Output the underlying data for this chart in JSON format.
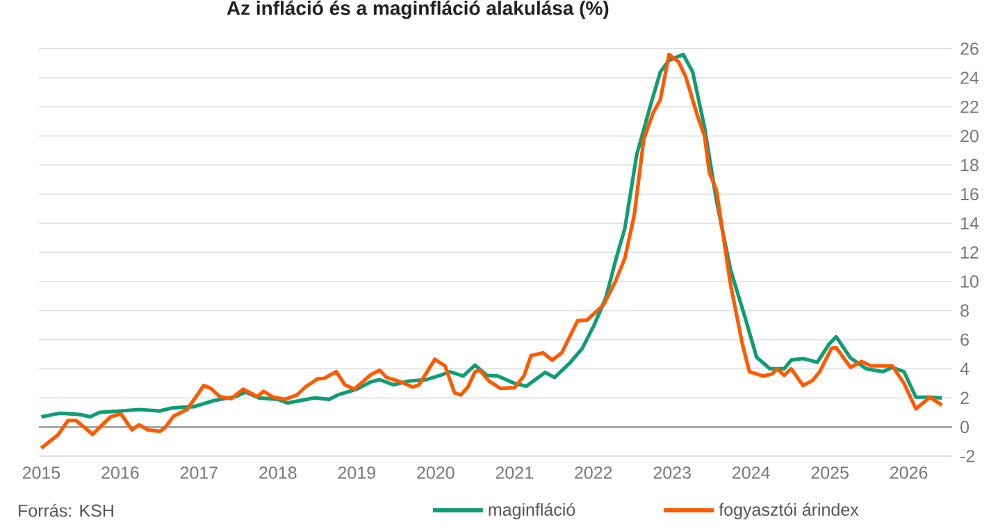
{
  "chart_data": {
    "type": "line",
    "title": "Az infláció és a maginfláció alakulása (%)",
    "annotations": [
      "Forrás: KSH"
    ],
    "xlim": [
      2014.97,
      2026.55
    ],
    "xticks": [
      2015,
      2016,
      2017,
      2018,
      2019,
      2020,
      2021,
      2022,
      2023,
      2024,
      2025,
      2026
    ],
    "ylim": [
      -2,
      26
    ],
    "yticks": [
      -2,
      0,
      2,
      4,
      6,
      8,
      10,
      12,
      14,
      16,
      18,
      20,
      22,
      24,
      26
    ],
    "grid": "y",
    "legend": "bottom",
    "marker": "none",
    "line_style": "solid",
    "ref_lines": [
      {
        "axis": "y",
        "value": 0,
        "color": "#888888"
      }
    ],
    "series": [
      {
        "name": "maginfláció",
        "color": "#0f9d74",
        "x": [
          2015.0,
          2015.24,
          2015.5,
          2015.62,
          2015.74,
          2016.01,
          2016.24,
          2016.5,
          2016.65,
          2016.94,
          2017.18,
          2017.47,
          2017.59,
          2017.76,
          2018.0,
          2018.12,
          2018.47,
          2018.65,
          2018.76,
          2019.0,
          2019.18,
          2019.29,
          2019.47,
          2019.65,
          2019.88,
          2020.06,
          2020.18,
          2020.35,
          2020.5,
          2020.65,
          2020.79,
          2021.0,
          2021.15,
          2021.39,
          2021.51,
          2021.71,
          2021.86,
          2022.01,
          2022.16,
          2022.28,
          2022.4,
          2022.55,
          2022.73,
          2022.85,
          2022.96,
          2023.14,
          2023.26,
          2023.41,
          2023.56,
          2023.74,
          2023.92,
          2024.07,
          2024.24,
          2024.42,
          2024.51,
          2024.66,
          2024.84,
          2024.99,
          2025.08,
          2025.26,
          2025.46,
          2025.67,
          2025.79,
          2025.94,
          2026.09,
          2026.27,
          2026.42
        ],
        "values": [
          0.7,
          0.95,
          0.85,
          0.7,
          1.0,
          1.1,
          1.2,
          1.1,
          1.3,
          1.4,
          1.8,
          2.1,
          2.4,
          2.0,
          1.9,
          1.65,
          2.0,
          1.9,
          2.2,
          2.6,
          3.1,
          3.25,
          2.9,
          3.15,
          3.25,
          3.55,
          3.8,
          3.5,
          4.25,
          3.55,
          3.5,
          3.0,
          2.8,
          3.75,
          3.4,
          4.45,
          5.4,
          7.0,
          8.9,
          11.4,
          13.65,
          18.7,
          22.2,
          24.4,
          25.2,
          25.6,
          24.4,
          20.6,
          15.6,
          10.8,
          7.6,
          4.8,
          4.0,
          4.0,
          4.6,
          4.7,
          4.45,
          5.7,
          6.2,
          4.75,
          4.0,
          3.8,
          4.1,
          3.8,
          2.05,
          2.05,
          2.0
        ]
      },
      {
        "name": "fogyasztói árindex",
        "color": "#ff5a00",
        "x": [
          2015.0,
          2015.21,
          2015.34,
          2015.44,
          2015.65,
          2015.88,
          2016.01,
          2016.15,
          2016.24,
          2016.35,
          2016.5,
          2016.56,
          2016.68,
          2016.85,
          2017.06,
          2017.15,
          2017.26,
          2017.41,
          2017.56,
          2017.74,
          2017.82,
          2017.94,
          2018.09,
          2018.24,
          2018.35,
          2018.5,
          2018.59,
          2018.74,
          2018.85,
          2018.97,
          2019.18,
          2019.29,
          2019.38,
          2019.53,
          2019.71,
          2019.79,
          2019.99,
          2020.12,
          2020.24,
          2020.32,
          2020.41,
          2020.5,
          2020.56,
          2020.68,
          2020.82,
          2021.0,
          2021.12,
          2021.21,
          2021.36,
          2021.48,
          2021.6,
          2021.8,
          2021.92,
          2022.13,
          2022.28,
          2022.4,
          2022.52,
          2022.64,
          2022.76,
          2022.85,
          2022.96,
          2023.08,
          2023.17,
          2023.32,
          2023.41,
          2023.47,
          2023.56,
          2023.74,
          2023.89,
          2023.98,
          2024.16,
          2024.27,
          2024.33,
          2024.42,
          2024.51,
          2024.66,
          2024.78,
          2024.87,
          2025.02,
          2025.08,
          2025.26,
          2025.4,
          2025.52,
          2025.79,
          2025.94,
          2026.09,
          2026.27,
          2026.42
        ],
        "values": [
          -1.45,
          -0.55,
          0.45,
          0.45,
          -0.5,
          0.7,
          0.9,
          -0.2,
          0.15,
          -0.2,
          -0.3,
          -0.1,
          0.75,
          1.2,
          2.85,
          2.65,
          2.1,
          1.95,
          2.6,
          2.1,
          2.45,
          2.05,
          1.9,
          2.2,
          2.75,
          3.3,
          3.35,
          3.8,
          2.9,
          2.6,
          3.6,
          3.9,
          3.4,
          3.15,
          2.75,
          2.9,
          4.65,
          4.2,
          2.35,
          2.2,
          2.75,
          3.8,
          3.9,
          3.15,
          2.65,
          2.7,
          3.5,
          4.9,
          5.1,
          4.6,
          5.1,
          7.3,
          7.35,
          8.4,
          10.0,
          11.6,
          14.6,
          19.8,
          21.6,
          22.5,
          25.6,
          25.1,
          24.1,
          21.4,
          20.0,
          17.5,
          16.3,
          9.8,
          5.7,
          3.8,
          3.5,
          3.65,
          4.0,
          3.55,
          4.0,
          2.85,
          3.2,
          3.8,
          5.4,
          5.45,
          4.1,
          4.5,
          4.2,
          4.2,
          3.0,
          1.25,
          2.05,
          1.5
        ]
      }
    ]
  }
}
